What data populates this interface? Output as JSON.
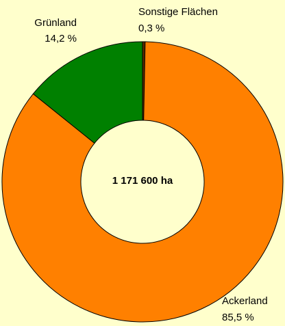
{
  "chart_data": {
    "type": "donut",
    "center_label": "1 171 600 ha",
    "categories": [
      "Sonstige Flächen",
      "Ackerland",
      "Grünland"
    ],
    "values": [
      0.3,
      85.5,
      14.2
    ],
    "value_labels": [
      "0,3 %",
      "85,5 %",
      "14,2 %"
    ],
    "colors": [
      "#5a2a00",
      "#ff8000",
      "#008000"
    ]
  }
}
